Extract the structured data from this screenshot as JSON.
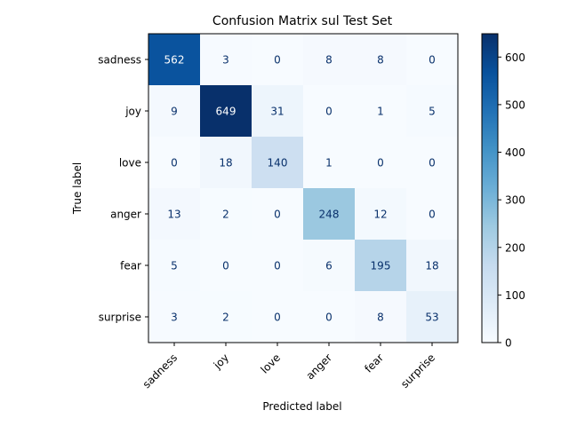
{
  "chart_data": {
    "type": "heatmap",
    "title": "Confusion Matrix sul Test Set",
    "xlabel": "Predicted label",
    "ylabel": "True label",
    "x_categories": [
      "sadness",
      "joy",
      "love",
      "anger",
      "fear",
      "surprise"
    ],
    "y_categories": [
      "sadness",
      "joy",
      "love",
      "anger",
      "fear",
      "surprise"
    ],
    "values": [
      [
        562,
        3,
        0,
        8,
        8,
        0
      ],
      [
        9,
        649,
        31,
        0,
        1,
        5
      ],
      [
        0,
        18,
        140,
        1,
        0,
        0
      ],
      [
        13,
        2,
        0,
        248,
        12,
        0
      ],
      [
        5,
        0,
        0,
        6,
        195,
        18
      ],
      [
        3,
        2,
        0,
        0,
        8,
        53
      ]
    ],
    "colormap": "Blues",
    "vmin": 0,
    "vmax": 649,
    "colorbar_ticks": [
      "0",
      "100",
      "200",
      "300",
      "400",
      "500",
      "600"
    ],
    "grid": false,
    "colors": {
      "low": "#f7fbff",
      "high": "#08306b",
      "text_dark_cell": "#ffffff",
      "text_light_cell": "#08306b"
    }
  }
}
